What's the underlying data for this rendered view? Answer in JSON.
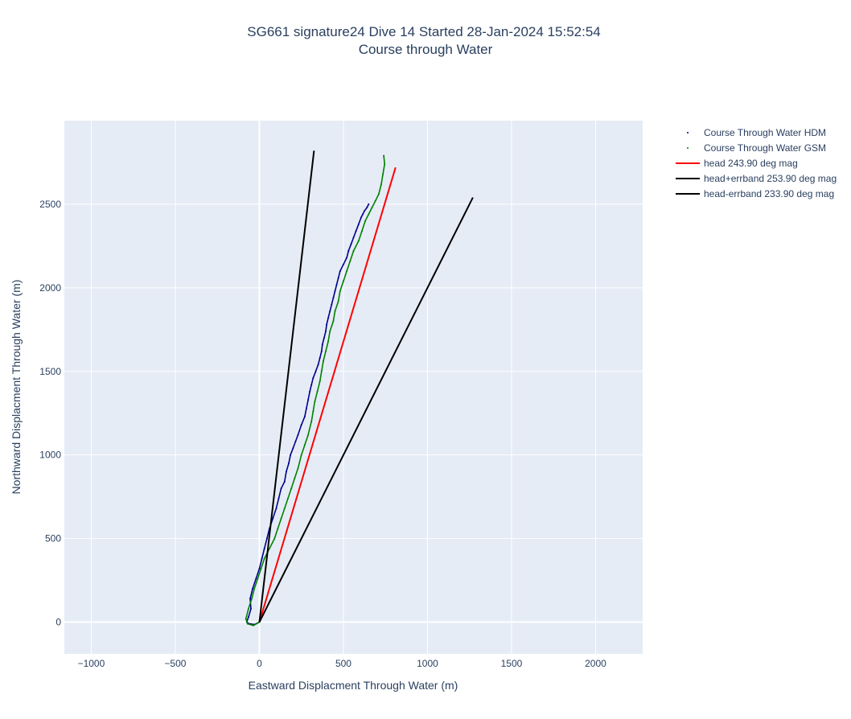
{
  "chart_data": {
    "type": "line",
    "title": "SG661 signature24 Dive 14 Started 28-Jan-2024 15:52:54",
    "subtitle": "Course through Water",
    "xlabel": "Eastward Displacment Through Water (m)",
    "ylabel": "Northward Displacment Through Water (m)",
    "xlim": [
      -1160,
      2280
    ],
    "ylim": [
      -190,
      3000
    ],
    "xticks": [
      -1000,
      -500,
      0,
      500,
      1000,
      1500,
      2000
    ],
    "xtick_labels": [
      "−1000",
      "−500",
      "0",
      "500",
      "1000",
      "1500",
      "2000"
    ],
    "yticks": [
      0,
      500,
      1000,
      1500,
      2000,
      2500
    ],
    "ytick_labels": [
      "0",
      "500",
      "1000",
      "1500",
      "2000",
      "2500"
    ],
    "grid": true,
    "legend_position": "right",
    "series": [
      {
        "name": "Course Through Water HDM",
        "color": "#00008b",
        "mode": "markers+line",
        "x": [
          0,
          -30,
          -60,
          -75,
          -65,
          -50,
          -55,
          -40,
          -20,
          0,
          15,
          30,
          45,
          60,
          80,
          100,
          115,
          130,
          150,
          160,
          175,
          185,
          200,
          215,
          230,
          250,
          270,
          280,
          290,
          300,
          310,
          320,
          335,
          350,
          360,
          370,
          375,
          385,
          395,
          400,
          410,
          420,
          430,
          440,
          450,
          460,
          470,
          480,
          500,
          520,
          530,
          545,
          560,
          575,
          590,
          605,
          615,
          625,
          640,
          650
        ],
        "y": [
          0,
          -15,
          -10,
          0,
          30,
          80,
          140,
          200,
          260,
          320,
          380,
          440,
          500,
          560,
          620,
          680,
          740,
          800,
          840,
          900,
          950,
          1000,
          1040,
          1080,
          1120,
          1180,
          1230,
          1280,
          1330,
          1380,
          1420,
          1460,
          1500,
          1540,
          1580,
          1620,
          1660,
          1700,
          1740,
          1780,
          1820,
          1860,
          1900,
          1940,
          1980,
          2020,
          2060,
          2100,
          2140,
          2180,
          2220,
          2260,
          2300,
          2340,
          2380,
          2420,
          2440,
          2460,
          2480,
          2500
        ]
      },
      {
        "name": "Course Through Water GSM",
        "color": "#008000",
        "mode": "markers+line",
        "x": [
          0,
          -35,
          -70,
          -80,
          -65,
          -45,
          -30,
          -10,
          10,
          30,
          60,
          90,
          110,
          130,
          150,
          170,
          190,
          210,
          230,
          250,
          270,
          290,
          310,
          320,
          330,
          345,
          360,
          370,
          380,
          395,
          410,
          420,
          440,
          450,
          470,
          480,
          500,
          520,
          540,
          560,
          590,
          610,
          630,
          650,
          670,
          690,
          710,
          725,
          735,
          745,
          740
        ],
        "y": [
          0,
          -20,
          -10,
          20,
          80,
          140,
          200,
          260,
          320,
          380,
          440,
          500,
          560,
          620,
          680,
          740,
          800,
          860,
          920,
          1000,
          1060,
          1120,
          1200,
          1260,
          1320,
          1380,
          1440,
          1500,
          1560,
          1620,
          1680,
          1740,
          1800,
          1860,
          1920,
          1980,
          2040,
          2100,
          2160,
          2220,
          2280,
          2340,
          2400,
          2440,
          2480,
          2520,
          2560,
          2620,
          2680,
          2740,
          2790
        ]
      },
      {
        "name": "head 243.90 deg mag",
        "color": "#ff0000",
        "mode": "line",
        "x": [
          0,
          810
        ],
        "y": [
          0,
          2720
        ]
      },
      {
        "name": "head+errband 253.90 deg mag",
        "color": "#000000",
        "mode": "line",
        "x": [
          0,
          325
        ],
        "y": [
          0,
          2820
        ]
      },
      {
        "name": "head-errband 233.90 deg mag",
        "color": "#000000",
        "mode": "line",
        "x": [
          0,
          1270
        ],
        "y": [
          0,
          2540
        ]
      }
    ]
  }
}
